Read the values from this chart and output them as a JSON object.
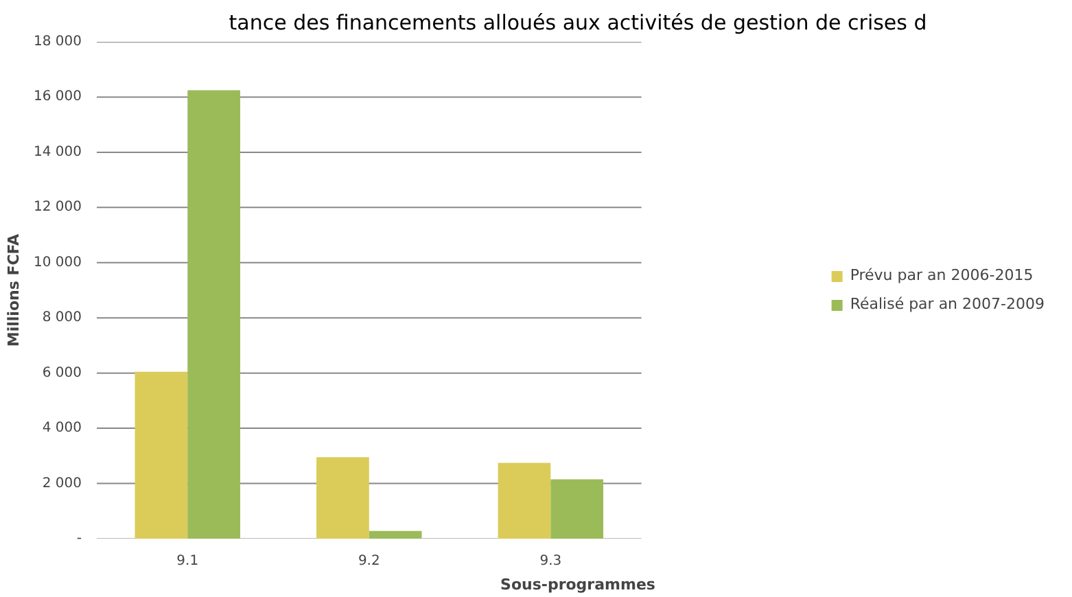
{
  "chart_data": {
    "type": "bar",
    "title": "tance des financements alloués aux activités de gestion de crises d",
    "xlabel": "Sous-programmes",
    "ylabel": "Millions FCFA",
    "categories": [
      "9.1",
      "9.2",
      "9.3"
    ],
    "series": [
      {
        "name": "Prévu par an 2006-2015",
        "color": "#dbcc5a",
        "values": [
          6050,
          2950,
          2750
        ]
      },
      {
        "name": "Réalisé par an 2007-2009",
        "color": "#9bbb59",
        "values": [
          16250,
          280,
          2150
        ]
      }
    ],
    "ylim": [
      0,
      18000
    ],
    "yticks": [
      {
        "value": 0,
        "label": "-"
      },
      {
        "value": 2000,
        "label": "2 000"
      },
      {
        "value": 4000,
        "label": "4 000"
      },
      {
        "value": 6000,
        "label": "6 000"
      },
      {
        "value": 8000,
        "label": "8 000"
      },
      {
        "value": 10000,
        "label": "10 000"
      },
      {
        "value": 12000,
        "label": "12 000"
      },
      {
        "value": 14000,
        "label": "14 000"
      },
      {
        "value": 16000,
        "label": "16 000"
      },
      {
        "value": 18000,
        "label": "18 000"
      }
    ],
    "grid": "y",
    "legend": "right"
  }
}
